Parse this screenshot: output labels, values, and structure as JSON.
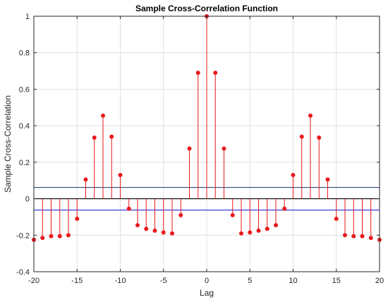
{
  "chart_data": {
    "type": "stem",
    "title": "Sample Cross-Correlation Function",
    "xlabel": "Lag",
    "ylabel": "Sample Cross-Correlation",
    "xlim": [
      -20,
      20
    ],
    "ylim": [
      -0.4,
      1
    ],
    "xticks": [
      -20,
      -15,
      -10,
      -5,
      0,
      5,
      10,
      15,
      20
    ],
    "yticks": [
      -0.4,
      -0.2,
      0,
      0.2,
      0.4,
      0.6,
      0.8,
      1
    ],
    "grid": true,
    "x": [
      -20,
      -19,
      -18,
      -17,
      -16,
      -15,
      -14,
      -13,
      -12,
      -11,
      -10,
      -9,
      -8,
      -7,
      -6,
      -5,
      -4,
      -3,
      -2,
      -1,
      0,
      1,
      2,
      3,
      4,
      5,
      6,
      7,
      8,
      9,
      10,
      11,
      12,
      13,
      14,
      15,
      16,
      17,
      18,
      19,
      20
    ],
    "values": [
      -0.225,
      -0.215,
      -0.205,
      -0.205,
      -0.2,
      -0.11,
      0.105,
      0.335,
      0.455,
      0.34,
      0.13,
      -0.055,
      -0.145,
      -0.165,
      -0.175,
      -0.185,
      -0.19,
      -0.09,
      0.275,
      0.69,
      1.0,
      0.69,
      0.275,
      -0.09,
      -0.19,
      -0.185,
      -0.175,
      -0.165,
      -0.145,
      -0.055,
      0.13,
      0.34,
      0.455,
      0.335,
      0.105,
      -0.11,
      -0.2,
      -0.205,
      -0.205,
      -0.215,
      -0.225
    ],
    "confidence_bounds": [
      0.062,
      -0.062
    ],
    "colors": {
      "stem": "#e8191c",
      "bound": "#3d3ddb",
      "bound_upper": "#2e4a7a",
      "baseline": "#000000",
      "grid": "#e0e0e0",
      "axis": "#262626"
    }
  }
}
